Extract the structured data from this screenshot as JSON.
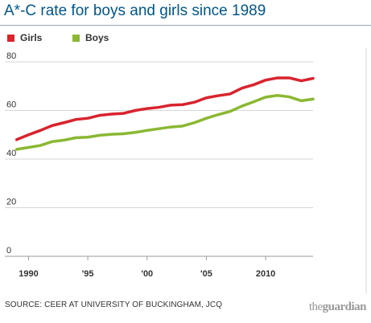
{
  "title": "A*-C rate for boys and girls since 1989",
  "source": "SOURCE: CEER AT UNIVERSITY OF BUCKINGHAM, JCQ",
  "logo": {
    "the": "the",
    "guardian": "guardian"
  },
  "chart_data": {
    "type": "line",
    "title": "A*-C rate for boys and girls since 1989",
    "xlabel": "",
    "ylabel": "",
    "xlim": [
      1988,
      2014
    ],
    "ylim": [
      0,
      80
    ],
    "yticks": [
      0,
      20,
      40,
      60,
      80
    ],
    "xticks": [
      {
        "value": 1990,
        "label": "1990"
      },
      {
        "value": 1995,
        "label": "'95"
      },
      {
        "value": 2000,
        "label": "'00"
      },
      {
        "value": 2005,
        "label": "'05"
      },
      {
        "value": 2010,
        "label": "2010"
      }
    ],
    "grid": true,
    "legend_position": "top-left",
    "x": [
      1989,
      1990,
      1991,
      1992,
      1993,
      1994,
      1995,
      1996,
      1997,
      1998,
      1999,
      2000,
      2001,
      2002,
      2003,
      2004,
      2005,
      2006,
      2007,
      2008,
      2009,
      2010,
      2011,
      2012,
      2013,
      2014
    ],
    "series": [
      {
        "name": "Girls",
        "color": "#d9232d",
        "values": [
          48.0,
          50.0,
          51.8,
          53.8,
          55.0,
          56.3,
          56.8,
          58.0,
          58.5,
          58.8,
          60.0,
          60.8,
          61.3,
          62.2,
          62.4,
          63.4,
          65.2,
          66.1,
          66.8,
          69.2,
          70.6,
          72.5,
          73.4,
          73.4,
          72.2,
          73.2
        ]
      },
      {
        "name": "Boys",
        "color": "#8ab832",
        "values": [
          44.0,
          44.8,
          45.6,
          47.2,
          47.8,
          48.8,
          49.0,
          49.8,
          50.2,
          50.4,
          51.0,
          51.8,
          52.5,
          53.2,
          53.6,
          55.0,
          56.8,
          58.3,
          59.6,
          61.8,
          63.6,
          65.5,
          66.2,
          65.6,
          64.0,
          64.7
        ]
      }
    ]
  }
}
